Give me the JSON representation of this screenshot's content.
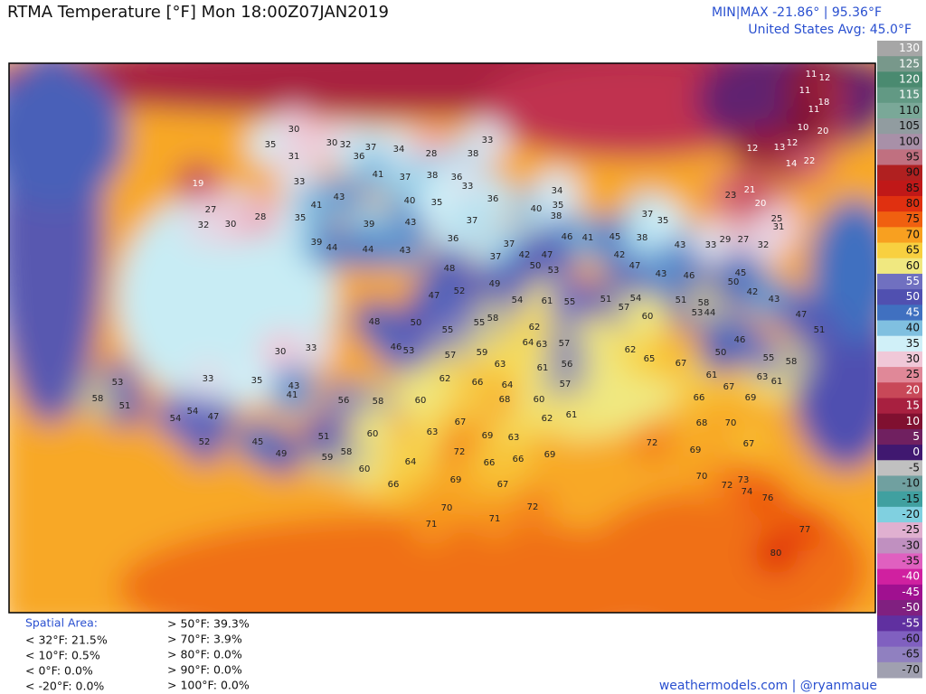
{
  "header": {
    "title": "RTMA Temperature [°F]  Mon 18:00Z07JAN2019",
    "minmax": "MIN|MAX -21.86°  |  95.36°F",
    "average": "United States Avg: 45.0°F"
  },
  "colorbar": {
    "ticks": [
      130,
      125,
      120,
      115,
      110,
      105,
      100,
      95,
      90,
      85,
      80,
      75,
      70,
      65,
      60,
      55,
      50,
      45,
      40,
      35,
      30,
      25,
      20,
      15,
      10,
      5,
      0,
      -5,
      -10,
      -15,
      -20,
      -25,
      -30,
      -35,
      -40,
      -45,
      -50,
      -55,
      -60,
      -65,
      -70
    ]
  },
  "stations": [
    30,
    30,
    32,
    37,
    34,
    28,
    38,
    33,
    35,
    31,
    33,
    36,
    41,
    37,
    38,
    36,
    33,
    19,
    27,
    30,
    32,
    28,
    35,
    39,
    44,
    43,
    41,
    40,
    43,
    35,
    37,
    39,
    44,
    43,
    36,
    37,
    37,
    42,
    47,
    50,
    53,
    48,
    52,
    49,
    54,
    61,
    55,
    47,
    48,
    50,
    55,
    55,
    58,
    62,
    64,
    63,
    57,
    46,
    53,
    57,
    59,
    63,
    61,
    56,
    62,
    66,
    64,
    68,
    60,
    57,
    60,
    58,
    56,
    63,
    67,
    69,
    63,
    62,
    61,
    72,
    66,
    66,
    69,
    64,
    66,
    69,
    67,
    70,
    71,
    71,
    72,
    60,
    60,
    59,
    58,
    51,
    49,
    45,
    52,
    54,
    47,
    54,
    53,
    51,
    58,
    33,
    35,
    41,
    33,
    30,
    43,
    62,
    65,
    67,
    61,
    66,
    68,
    70,
    72,
    69,
    67,
    70,
    72,
    73,
    74,
    76,
    77,
    80,
    69,
    67,
    63,
    61,
    50,
    46,
    55,
    58,
    43,
    42,
    47,
    51,
    12,
    13,
    12,
    14,
    22,
    20,
    11,
    12,
    11,
    18,
    11,
    10,
    23,
    21,
    20,
    25,
    29,
    27,
    32,
    31,
    43,
    33,
    46,
    50,
    45,
    44,
    53,
    51,
    58,
    42,
    47,
    43,
    51,
    54,
    57,
    60,
    36,
    40,
    38,
    35,
    34,
    46,
    41,
    45,
    38,
    37,
    35
  ],
  "spatial_area": {
    "heading": "Spatial Area:",
    "below": [
      "< 32°F: 21.5%",
      "< 10°F: 0.5%",
      "< 0°F: 0.0%",
      "< -20°F: 0.0%"
    ],
    "above": [
      "> 50°F: 39.3%",
      "> 70°F: 3.9%",
      "> 80°F: 0.0%",
      "> 90°F: 0.0%",
      "> 100°F: 0.0%"
    ]
  },
  "credit": "weathermodels.com | @ryanmaue"
}
